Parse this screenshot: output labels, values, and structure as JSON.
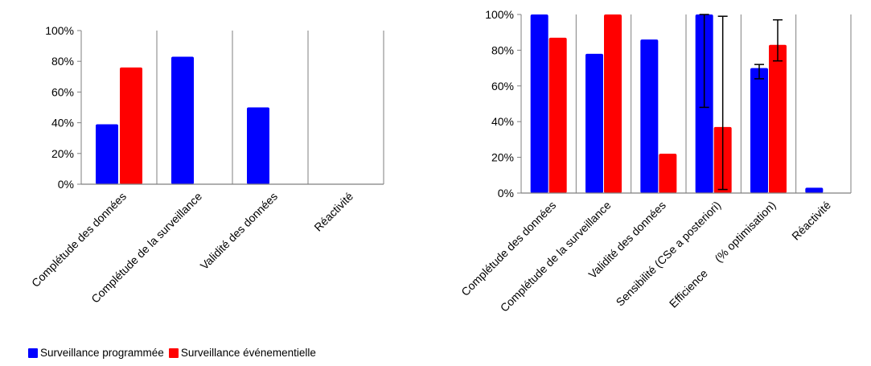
{
  "colors": {
    "programmed": "#0000ff",
    "event": "#ff0000",
    "grid": "#bfbfbf",
    "axis": "#7f7f7f",
    "errorbar": "#000000"
  },
  "legend": {
    "items": [
      {
        "label": "Surveillance programmée",
        "color": "#0000ff"
      },
      {
        "label": "Surveillance événementielle",
        "color": "#ff0000"
      }
    ]
  },
  "chart_data": [
    {
      "type": "bar",
      "categories": [
        "Complétude des données",
        "Complétude de la surveillance",
        "Validité des données",
        "Réactivité"
      ],
      "series": [
        {
          "name": "Surveillance programmée",
          "values": [
            39,
            83,
            50,
            null
          ]
        },
        {
          "name": "Surveillance événementielle",
          "values": [
            76,
            null,
            null,
            null
          ]
        }
      ],
      "ylim": [
        0,
        100
      ],
      "yticks": [
        "0%",
        "20%",
        "40%",
        "60%",
        "80%",
        "100%"
      ],
      "category_separators": true
    },
    {
      "type": "bar",
      "categories": [
        "Complétude des données",
        "Complétude de la surveillance",
        "Validité des données",
        "Sensibilité (CSe a posteriori)",
        "Efficience     (% optimisation)",
        "Réactivité"
      ],
      "series": [
        {
          "name": "Surveillance programmée",
          "values": [
            100,
            78,
            86,
            100,
            70,
            3
          ],
          "error_bars": [
            null,
            null,
            null,
            [
              48,
              100
            ],
            [
              64,
              72
            ],
            null
          ]
        },
        {
          "name": "Surveillance événementielle",
          "values": [
            87,
            100,
            22,
            37,
            83,
            null
          ],
          "error_bars": [
            null,
            null,
            null,
            [
              2,
              99
            ],
            [
              74,
              97
            ],
            null
          ]
        }
      ],
      "ylim": [
        0,
        100
      ],
      "yticks": [
        "0%",
        "20%",
        "40%",
        "60%",
        "80%",
        "100%"
      ],
      "category_separators": true
    }
  ]
}
